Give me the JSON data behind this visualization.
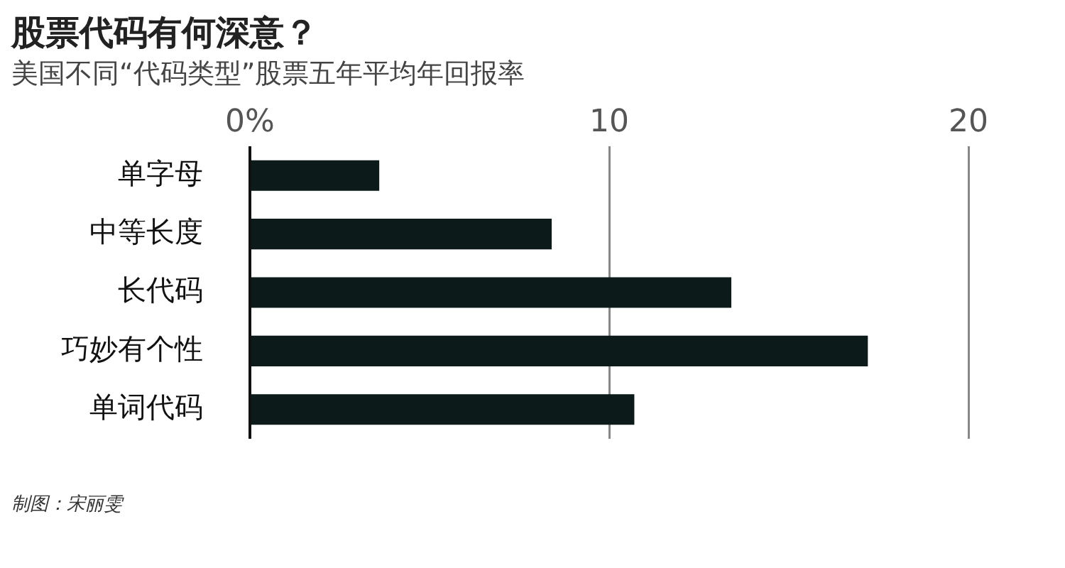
{
  "chart_data": {
    "type": "bar",
    "orientation": "horizontal",
    "title": "股票代码有何深意？",
    "subtitle": "美国不同“代码类型”股票五年平均年回报率",
    "categories": [
      "单字母",
      "中等长度",
      "长代码",
      "巧妙有个性",
      "单词代码"
    ],
    "values": [
      3.6,
      8.4,
      13.4,
      17.2,
      10.7
    ],
    "color": "#0d1a1a",
    "xlim": [
      0,
      20
    ],
    "xticks": [
      {
        "value": 0,
        "label": "0%"
      },
      10,
      20
    ],
    "grid": "x",
    "annotations": [
      "制图：宋丽雯"
    ]
  }
}
